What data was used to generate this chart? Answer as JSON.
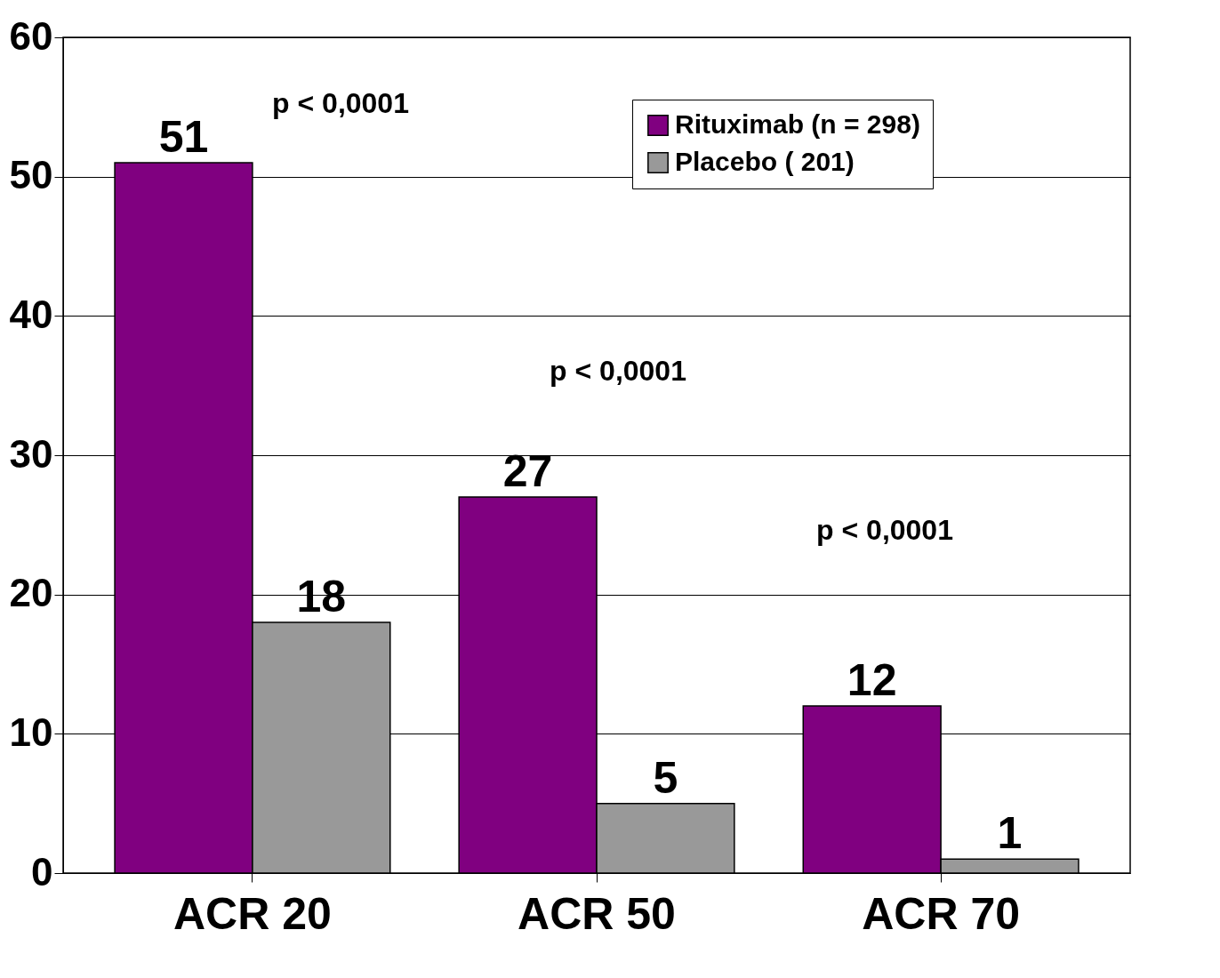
{
  "chart_data": {
    "type": "bar",
    "categories": [
      "ACR 20",
      "ACR 50",
      "ACR 70"
    ],
    "series": [
      {
        "name": "Rituximab (n = 298)",
        "color": "#800080",
        "values": [
          51,
          27,
          12
        ]
      },
      {
        "name": "Placebo ( 201)",
        "color": "#999999",
        "values": [
          18,
          5,
          1
        ]
      }
    ],
    "ylim": [
      0,
      60
    ],
    "yticks": [
      0,
      10,
      20,
      30,
      40,
      50,
      60
    ],
    "grid": "y",
    "legend": "top right",
    "data_labels": true,
    "annotations": [
      "p < 0,0001",
      "p < 0,0001",
      "p < 0,0001"
    ]
  }
}
